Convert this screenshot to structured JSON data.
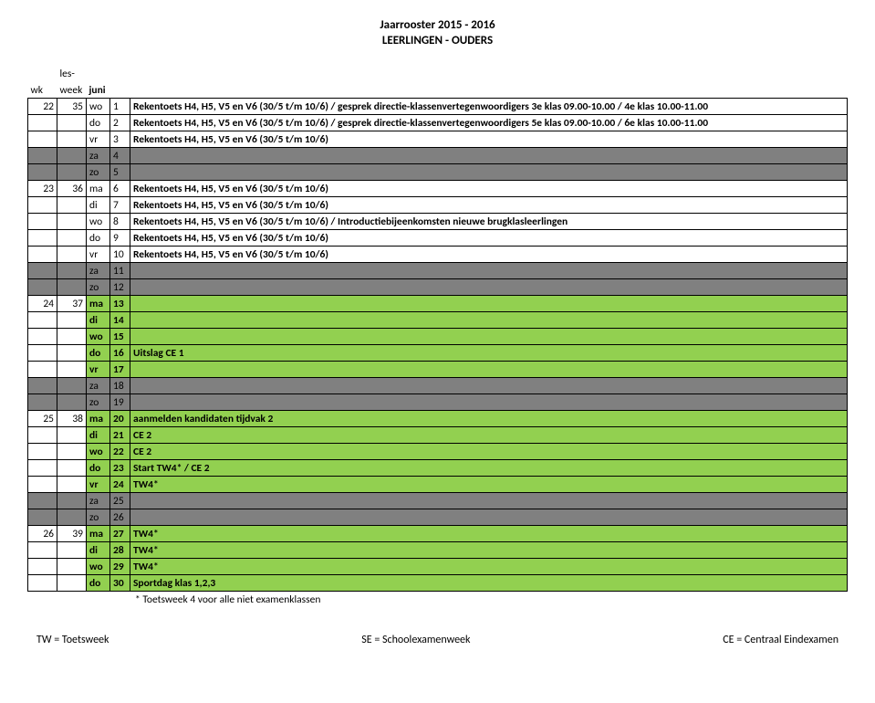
{
  "header": {
    "line1": "Jaarrooster 2015 - 2016",
    "line2": "LEERLINGEN - OUDERS"
  },
  "cornerLabels": {
    "c1": "les-",
    "c2": "wk",
    "c3": "week"
  },
  "month": "juni",
  "rows": [
    {
      "wk": "22",
      "lw": "35",
      "day": "wo",
      "num": "1",
      "desc": "Rekentoets H4, H5, V5 en V6 (30/5 t/m 10/6) / gesprek directie-klassenvertegenwoordigers 3e klas 09.00-10.00 / 4e klas 10.00-11.00",
      "style": ""
    },
    {
      "wk": "",
      "lw": "",
      "day": "do",
      "num": "2",
      "desc": "Rekentoets H4, H5, V5 en V6 (30/5 t/m 10/6) / gesprek directie-klassenvertegenwoordigers 5e klas 09.00-10.00 / 6e klas 10.00-11.00",
      "style": ""
    },
    {
      "wk": "",
      "lw": "",
      "day": "vr",
      "num": "3",
      "desc": "Rekentoets H4, H5, V5 en V6 (30/5 t/m 10/6)",
      "style": ""
    },
    {
      "wk": "",
      "lw": "",
      "day": "za",
      "num": "4",
      "desc": "",
      "style": "weekend"
    },
    {
      "wk": "",
      "lw": "",
      "day": "zo",
      "num": "5",
      "desc": "",
      "style": "weekend"
    },
    {
      "wk": "23",
      "lw": "36",
      "day": "ma",
      "num": "6",
      "desc": "Rekentoets H4, H5, V5 en V6 (30/5 t/m 10/6)",
      "style": ""
    },
    {
      "wk": "",
      "lw": "",
      "day": "di",
      "num": "7",
      "desc": "Rekentoets H4, H5, V5 en V6 (30/5 t/m 10/6)",
      "style": ""
    },
    {
      "wk": "",
      "lw": "",
      "day": "wo",
      "num": "8",
      "desc": "Rekentoets H4, H5, V5 en V6 (30/5 t/m 10/6) / Introductiebijeenkomsten nieuwe brugklasleerlingen",
      "style": ""
    },
    {
      "wk": "",
      "lw": "",
      "day": "do",
      "num": "9",
      "desc": "Rekentoets H4, H5, V5 en V6 (30/5 t/m 10/6)",
      "style": ""
    },
    {
      "wk": "",
      "lw": "",
      "day": "vr",
      "num": "10",
      "desc": "Rekentoets H4, H5, V5 en V6 (30/5 t/m 10/6)",
      "style": ""
    },
    {
      "wk": "",
      "lw": "",
      "day": "za",
      "num": "11",
      "desc": "",
      "style": "weekend"
    },
    {
      "wk": "",
      "lw": "",
      "day": "zo",
      "num": "12",
      "desc": "",
      "style": "weekend"
    },
    {
      "wk": "24",
      "lw": "37",
      "day": "ma",
      "num": "13",
      "desc": "",
      "style": "green"
    },
    {
      "wk": "",
      "lw": "",
      "day": "di",
      "num": "14",
      "desc": "",
      "style": "green"
    },
    {
      "wk": "",
      "lw": "",
      "day": "wo",
      "num": "15",
      "desc": "",
      "style": "green"
    },
    {
      "wk": "",
      "lw": "",
      "day": "do",
      "num": "16",
      "desc": "Uitslag CE 1",
      "style": "green"
    },
    {
      "wk": "",
      "lw": "",
      "day": "vr",
      "num": "17",
      "desc": "",
      "style": "green"
    },
    {
      "wk": "",
      "lw": "",
      "day": "za",
      "num": "18",
      "desc": "",
      "style": "weekend"
    },
    {
      "wk": "",
      "lw": "",
      "day": "zo",
      "num": "19",
      "desc": "",
      "style": "weekend"
    },
    {
      "wk": "25",
      "lw": "38",
      "day": "ma",
      "num": "20",
      "desc": "aanmelden kandidaten tijdvak 2",
      "style": "green"
    },
    {
      "wk": "",
      "lw": "",
      "day": "di",
      "num": "21",
      "desc": "CE 2",
      "style": "green"
    },
    {
      "wk": "",
      "lw": "",
      "day": "wo",
      "num": "22",
      "desc": "CE 2",
      "style": "green"
    },
    {
      "wk": "",
      "lw": "",
      "day": "do",
      "num": "23",
      "desc": "Start TW4* / CE 2",
      "style": "green"
    },
    {
      "wk": "",
      "lw": "",
      "day": "vr",
      "num": "24",
      "desc": "TW4*",
      "style": "green"
    },
    {
      "wk": "",
      "lw": "",
      "day": "za",
      "num": "25",
      "desc": "",
      "style": "weekend"
    },
    {
      "wk": "",
      "lw": "",
      "day": "zo",
      "num": "26",
      "desc": "",
      "style": "weekend"
    },
    {
      "wk": "26",
      "lw": "39",
      "day": "ma",
      "num": "27",
      "desc": "TW4*",
      "style": "green"
    },
    {
      "wk": "",
      "lw": "",
      "day": "di",
      "num": "28",
      "desc": "TW4*",
      "style": "green"
    },
    {
      "wk": "",
      "lw": "",
      "day": "wo",
      "num": "29",
      "desc": "TW4*",
      "style": "green"
    },
    {
      "wk": "",
      "lw": "",
      "day": "do",
      "num": "30",
      "desc": "Sportdag klas 1,2,3",
      "style": "green"
    }
  ],
  "footnote": "* Toetsweek 4 voor alle niet examenklassen",
  "footer": {
    "left": "TW = Toetsweek",
    "mid": "SE = Schoolexamenweek",
    "right": "CE = Centraal Eindexamen"
  },
  "colors": {
    "weekend": "#808080",
    "green": "#92d050"
  }
}
